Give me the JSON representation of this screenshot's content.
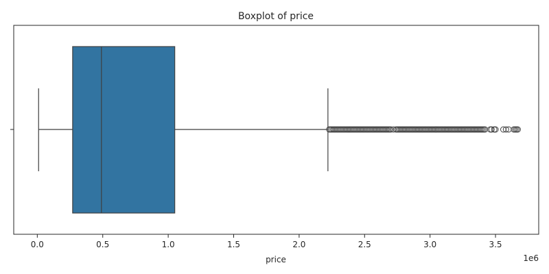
{
  "chart_data": {
    "type": "boxplot",
    "title": "Boxplot of price",
    "xlabel": "price",
    "x_offset_label": "1e6",
    "xlim": [
      -0.18,
      3.83
    ],
    "xticks": [
      0.0,
      0.5,
      1.0,
      1.5,
      2.0,
      2.5,
      3.0,
      3.5
    ],
    "xtick_labels": [
      "0.0",
      "0.5",
      "1.0",
      "1.5",
      "2.0",
      "2.5",
      "3.0",
      "3.5"
    ],
    "orientation": "horizontal",
    "grid": false,
    "box": {
      "whisker_low": 0.01,
      "q1": 0.27,
      "median": 0.49,
      "q3": 1.05,
      "whisker_high": 2.22
    },
    "outliers": [
      2.23,
      2.24,
      2.25,
      2.26,
      2.27,
      2.28,
      2.29,
      2.3,
      2.31,
      2.32,
      2.33,
      2.34,
      2.35,
      2.36,
      2.37,
      2.38,
      2.39,
      2.4,
      2.41,
      2.42,
      2.43,
      2.44,
      2.45,
      2.46,
      2.47,
      2.48,
      2.49,
      2.5,
      2.51,
      2.52,
      2.53,
      2.54,
      2.55,
      2.56,
      2.57,
      2.58,
      2.59,
      2.6,
      2.61,
      2.62,
      2.63,
      2.64,
      2.65,
      2.66,
      2.67,
      2.68,
      2.69,
      2.7,
      2.72,
      2.74,
      2.75,
      2.76,
      2.77,
      2.78,
      2.79,
      2.8,
      2.81,
      2.82,
      2.83,
      2.84,
      2.85,
      2.86,
      2.87,
      2.88,
      2.89,
      2.9,
      2.91,
      2.92,
      2.93,
      2.94,
      2.95,
      2.96,
      2.97,
      2.98,
      2.99,
      3.0,
      3.01,
      3.02,
      3.03,
      3.04,
      3.05,
      3.06,
      3.07,
      3.08,
      3.09,
      3.1,
      3.11,
      3.12,
      3.13,
      3.14,
      3.15,
      3.16,
      3.17,
      3.18,
      3.19,
      3.2,
      3.21,
      3.22,
      3.23,
      3.24,
      3.25,
      3.26,
      3.27,
      3.28,
      3.29,
      3.3,
      3.31,
      3.32,
      3.33,
      3.34,
      3.35,
      3.36,
      3.37,
      3.38,
      3.39,
      3.4,
      3.41,
      3.42,
      3.46,
      3.47,
      3.49,
      3.5,
      3.56,
      3.58,
      3.6,
      3.64,
      3.65,
      3.66,
      3.67
    ],
    "colors": {
      "box_fill": "#3274a1",
      "line": "#3f3f3f",
      "outlier_edge": "#3f3f3f",
      "axis": "#262626"
    }
  }
}
